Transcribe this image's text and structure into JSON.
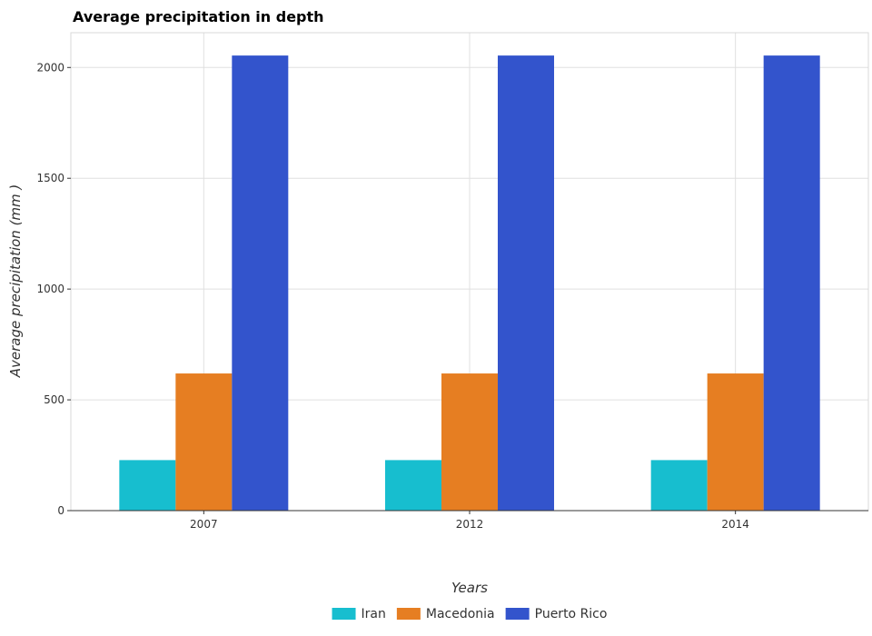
{
  "chart_data": {
    "type": "bar",
    "title": "Average precipitation in depth",
    "xlabel": "Years",
    "ylabel": "Average precipitation (mm )",
    "categories": [
      "2007",
      "2012",
      "2014"
    ],
    "series": [
      {
        "name": "Iran",
        "color": "#17becf",
        "values": [
          228,
          228,
          228
        ]
      },
      {
        "name": "Macedonia",
        "color": "#e67e22",
        "values": [
          619,
          619,
          619
        ]
      },
      {
        "name": "Puerto Rico",
        "color": "#3354cc",
        "values": [
          2054,
          2054,
          2054
        ]
      }
    ],
    "ylim": [
      0,
      2157
    ],
    "yticks": [
      0,
      500,
      1000,
      1500,
      2000
    ],
    "grid": true,
    "legend_position": "bottom-center"
  }
}
